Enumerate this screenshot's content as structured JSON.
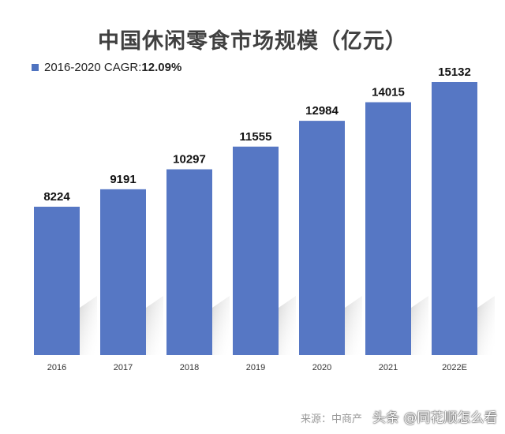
{
  "chart_data": {
    "type": "bar",
    "title": "中国休闲零食市场规模（亿元）",
    "legend": {
      "label": "2016-2020 CAGR:",
      "value": "12.09%",
      "position": "top-left"
    },
    "categories": [
      "2016",
      "2017",
      "2018",
      "2019",
      "2020",
      "2021",
      "2022E"
    ],
    "values": [
      8224,
      9191,
      10297,
      11555,
      12984,
      14015,
      15132
    ],
    "xlabel": "",
    "ylabel": "",
    "ylim": [
      0,
      15132
    ],
    "grid": false,
    "bar_color": "#5677c4"
  },
  "source": "来源：中商产",
  "watermark": "头条 @同花顺怎么看"
}
